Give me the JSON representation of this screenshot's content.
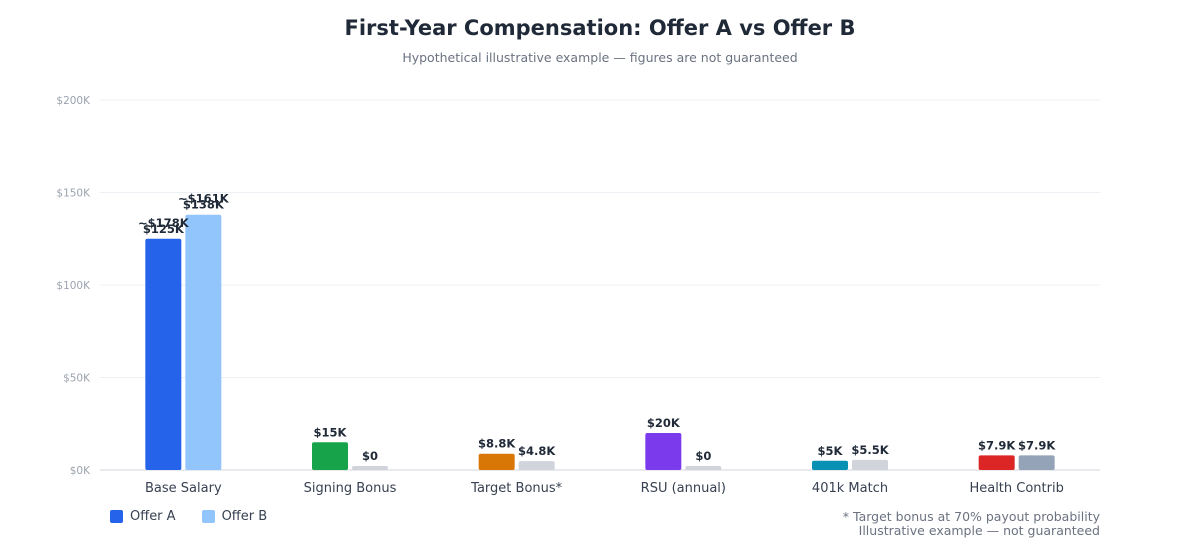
{
  "chart_data": {
    "type": "bar",
    "title": "First-Year Compensation: Offer A vs Offer B",
    "subtitle": "Hypothetical illustrative example — figures are not guaranteed",
    "categories": [
      "Base Salary",
      "Signing Bonus",
      "Target Bonus*",
      "RSU (annual)",
      "401k Match",
      "Health Contrib"
    ],
    "series": [
      {
        "name": "Offer A",
        "values": [
          125000,
          15000,
          8800,
          20000,
          5000,
          7900
        ],
        "labels": [
          "$125K",
          "$15K",
          "$8.8K",
          "$20K",
          "$5K",
          "$7.9K"
        ],
        "colors": [
          "#2563eb",
          "#16a34a",
          "#d97706",
          "#7c3aed",
          "#0891b2",
          "#dc2626"
        ]
      },
      {
        "name": "Offer B",
        "values": [
          138000,
          0,
          4800,
          0,
          5500,
          7900
        ],
        "labels": [
          "$138K",
          "$0",
          "$4.8K",
          "$0",
          "$5.5K",
          "$7.9K"
        ],
        "colors": [
          "#93c5fd",
          "#d1d5db",
          "#d1d5db",
          "#d1d5db",
          "#d1d5db",
          "#94a3b8"
        ]
      }
    ],
    "ylim": [
      0,
      200000
    ],
    "yticks": [
      0,
      50000,
      100000,
      150000,
      200000
    ],
    "ytick_labels": [
      "$0K",
      "$50K",
      "$100K",
      "$150K",
      "$200K"
    ],
    "annotations": [
      {
        "category": "Base Salary",
        "series": "Offer A",
        "text": "~$178K"
      },
      {
        "category": "Base Salary",
        "series": "Offer B",
        "text": "~$161K"
      }
    ],
    "legend": {
      "position": "bottom-left",
      "items": [
        "Offer A",
        "Offer B"
      ],
      "colors": [
        "#2563eb",
        "#93c5fd"
      ]
    },
    "grid": true,
    "footnotes": [
      "* Target bonus at 70% payout probability",
      "Illustrative example — not guaranteed"
    ]
  }
}
